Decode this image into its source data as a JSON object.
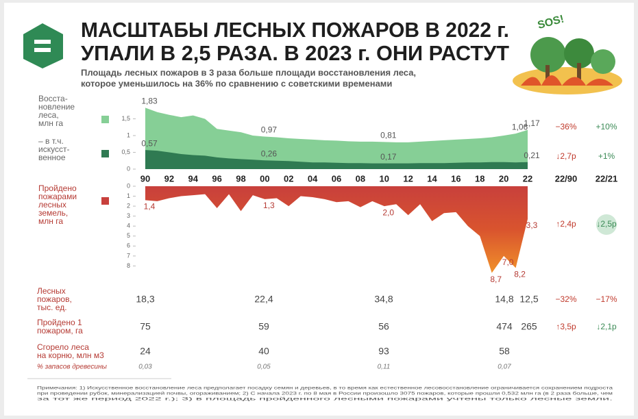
{
  "header": {
    "title_lines": [
      "МАСШТАБЫ ЛЕСНЫХ ПОЖАРОВ В 2022 г.",
      "УПАЛИ В 2,5 РАЗА. В 2023 г. ОНИ РАСТУТ"
    ],
    "subtitle_lines": [
      "Площадь лесных пожаров в 3 раза больше площади восстановления леса,",
      "которое уменьшилось на 36% по сравнению с советскими временами"
    ],
    "badge": "SOS!"
  },
  "chart_data": [
    {
      "type": "area",
      "x": [
        1990,
        1991,
        1992,
        1993,
        1994,
        1995,
        1996,
        1997,
        1998,
        1999,
        2000,
        2001,
        2002,
        2003,
        2004,
        2005,
        2006,
        2007,
        2008,
        2009,
        2010,
        2011,
        2012,
        2013,
        2014,
        2015,
        2016,
        2017,
        2018,
        2019,
        2020,
        2021,
        2022
      ],
      "xlim": [
        1990,
        2022
      ],
      "xticks": [
        {
          "value": 1990,
          "label": "90"
        },
        {
          "value": 1992,
          "label": "92"
        },
        {
          "value": 1994,
          "label": "94"
        },
        {
          "value": 1996,
          "label": "96"
        },
        {
          "value": 1998,
          "label": "98"
        },
        {
          "value": 2000,
          "label": "00"
        },
        {
          "value": 2002,
          "label": "02"
        },
        {
          "value": 2004,
          "label": "04"
        },
        {
          "value": 2006,
          "label": "06"
        },
        {
          "value": 2008,
          "label": "08"
        },
        {
          "value": 2010,
          "label": "10"
        },
        {
          "value": 2012,
          "label": "12"
        },
        {
          "value": 2014,
          "label": "14"
        },
        {
          "value": 2016,
          "label": "16"
        },
        {
          "value": 2018,
          "label": "18"
        },
        {
          "value": 2020,
          "label": "20"
        },
        {
          "value": 2022,
          "label": "22"
        }
      ],
      "ylim": [
        0,
        1.9
      ],
      "yticks": [
        0,
        {
          "value": 0.5,
          "label": "0,5"
        },
        1,
        {
          "value": 1.5,
          "label": "1,5"
        }
      ],
      "series": [
        {
          "name_lines": [
            "Восста-",
            "новление",
            "леса,",
            "млн га"
          ],
          "color": "#86cf96",
          "values": [
            1.83,
            1.7,
            1.62,
            1.55,
            1.6,
            1.5,
            1.2,
            1.15,
            1.1,
            1.0,
            0.97,
            0.95,
            0.92,
            0.9,
            0.88,
            0.86,
            0.85,
            0.83,
            0.82,
            0.82,
            0.81,
            0.8,
            0.8,
            0.82,
            0.84,
            0.86,
            0.88,
            0.9,
            0.92,
            0.95,
            1.0,
            1.06,
            1.17
          ],
          "value_labels": [
            "1,83",
            null,
            null,
            null,
            null,
            null,
            null,
            null,
            null,
            null,
            "0,97",
            null,
            null,
            null,
            null,
            null,
            null,
            null,
            null,
            null,
            "0,81",
            null,
            null,
            null,
            null,
            null,
            null,
            null,
            null,
            null,
            null,
            "1,06",
            "1,17"
          ]
        },
        {
          "name_lines": [
            "– в т.ч.",
            "искусст-",
            "венное"
          ],
          "color": "#2f7a52",
          "values": [
            0.57,
            0.55,
            0.5,
            0.45,
            0.42,
            0.4,
            0.35,
            0.32,
            0.3,
            0.28,
            0.26,
            0.25,
            0.24,
            0.22,
            0.2,
            0.2,
            0.19,
            0.18,
            0.18,
            0.17,
            0.17,
            0.17,
            0.17,
            0.18,
            0.18,
            0.18,
            0.19,
            0.2,
            0.2,
            0.21,
            0.21,
            0.2,
            0.21
          ],
          "value_labels": [
            "0,57",
            null,
            null,
            null,
            null,
            null,
            null,
            null,
            null,
            null,
            "0,26",
            null,
            null,
            null,
            null,
            null,
            null,
            null,
            null,
            null,
            "0,17",
            null,
            null,
            null,
            null,
            null,
            null,
            null,
            null,
            null,
            null,
            null,
            "0,21"
          ]
        }
      ]
    },
    {
      "type": "area",
      "inverted": true,
      "x": [
        1990,
        1991,
        1992,
        1993,
        1994,
        1995,
        1996,
        1997,
        1998,
        1999,
        2000,
        2001,
        2002,
        2003,
        2004,
        2005,
        2006,
        2007,
        2008,
        2009,
        2010,
        2011,
        2012,
        2013,
        2014,
        2015,
        2016,
        2017,
        2018,
        2019,
        2020,
        2021,
        2022
      ],
      "xlim": [
        1990,
        2022
      ],
      "ylim": [
        0,
        9
      ],
      "yticks": [
        0,
        1,
        2,
        3,
        4,
        5,
        6,
        7,
        8
      ],
      "series": [
        {
          "name_lines": [
            "Пройдено",
            "пожарами",
            "лесных",
            "земель,",
            "млн га"
          ],
          "color": "#c8403c",
          "values": [
            1.4,
            1.5,
            1.2,
            1.0,
            0.9,
            0.8,
            2.2,
            0.8,
            2.5,
            0.9,
            1.3,
            1.2,
            2.0,
            1.0,
            1.1,
            1.3,
            1.6,
            1.5,
            2.1,
            1.5,
            2.0,
            1.8,
            2.9,
            1.8,
            3.5,
            2.7,
            2.6,
            4.0,
            5.0,
            8.7,
            7.0,
            8.2,
            3.3
          ],
          "value_labels": [
            "1,4",
            null,
            null,
            null,
            null,
            null,
            null,
            null,
            null,
            null,
            "1,3",
            null,
            null,
            null,
            null,
            null,
            null,
            null,
            null,
            null,
            "2,0",
            null,
            null,
            null,
            null,
            null,
            null,
            null,
            null,
            "8,7",
            "7,0",
            "8,2",
            "3,3"
          ]
        }
      ]
    }
  ],
  "comparison": {
    "headers": [
      "22/90",
      "22/21"
    ],
    "rows": [
      [
        "−36%",
        "+10%"
      ],
      [
        "↓2,7р",
        "+1%"
      ],
      [
        "↑2,4р",
        "↓2,5р"
      ]
    ]
  },
  "table": {
    "rows": [
      {
        "label": [
          "Лесных",
          "пожаров,",
          "тыс. ед."
        ],
        "cells": [
          "18,3",
          "22,4",
          "34,8",
          "14,8",
          "12,5",
          "−32%",
          "−17%"
        ]
      },
      {
        "label": [
          "Пройдено 1",
          "пожаром, га"
        ],
        "cells": [
          "75",
          "59",
          "56",
          "474",
          "265",
          "↑3,5р",
          "↓2,1р"
        ]
      },
      {
        "label": [
          "Сгорело леса",
          "на корню, млн м3"
        ],
        "cells": [
          "24",
          "40",
          "93",
          "58",
          null,
          null,
          null
        ],
        "sub_label": "% запасов древесины",
        "sub_cells": [
          "0,03",
          "0,05",
          "0,11",
          "0,07",
          null,
          null,
          null
        ]
      }
    ]
  },
  "notes": [
    "Примечания: 1) Искусственное восстановление леса предполагает посадку семян и деревьев, в то время как естественное лесовосстановление ограничивается сохранением подроста",
    "при проведении рубок, минерализацией почвы, огораживанием; 2) С начала 2023 г. по 8 мая в России произошло 3075 пожаров, которые прошли 0,532 млн га (в 2 раза больше, чем",
    "за тот же период 2022 г.); 3) в площадь пройденного лесными пожарами учтены только лесные земли."
  ]
}
